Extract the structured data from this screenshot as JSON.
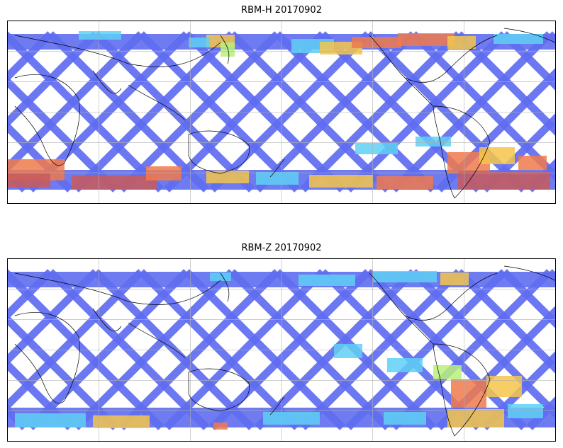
{
  "figure": {
    "panels": [
      {
        "title": "RBM-H 20170902",
        "colors": {
          "low": "#5f6df0",
          "mid": "#5fd0f5",
          "midhigh": "#b8f07a",
          "high": "#f6c54b",
          "higher": "#f07a4c",
          "max": "#c95a5a"
        }
      },
      {
        "title": "RBM-Z 20170902",
        "colors": {
          "low": "#5f6df0",
          "mid": "#5fd0f5",
          "midhigh": "#b8f07a",
          "high": "#f6c54b",
          "higher": "#f07a4c",
          "max": "#c95a5a"
        }
      }
    ],
    "projection": "cylindrical",
    "coastlines": true,
    "grid": true,
    "colorbar": false
  }
}
